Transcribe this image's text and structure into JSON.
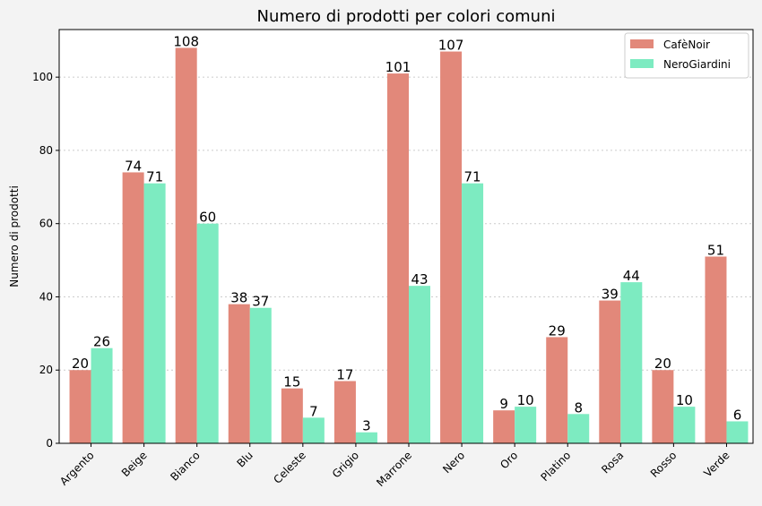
{
  "chart_data": {
    "type": "bar",
    "title": "Numero di prodotti per colori comuni",
    "xlabel": "",
    "ylabel": "Numero di prodotti",
    "ylim": [
      0,
      113
    ],
    "yticks": [
      0,
      20,
      40,
      60,
      80,
      100
    ],
    "grid": "y-dotted",
    "legend_position": "top-right",
    "categories": [
      "Argento",
      "Beige",
      "Bianco",
      "Blu",
      "Celeste",
      "Grigio",
      "Marrone",
      "Nero",
      "Oro",
      "Platino",
      "Rosa",
      "Rosso",
      "Verde"
    ],
    "series": [
      {
        "name": "CafèNoir",
        "color": "#e2887a",
        "values": [
          20,
          74,
          108,
          38,
          15,
          17,
          101,
          107,
          9,
          29,
          39,
          20,
          51
        ]
      },
      {
        "name": "NeroGiardini",
        "color": "#7debc1",
        "values": [
          26,
          71,
          60,
          37,
          7,
          3,
          43,
          71,
          10,
          8,
          44,
          10,
          6
        ]
      }
    ]
  }
}
